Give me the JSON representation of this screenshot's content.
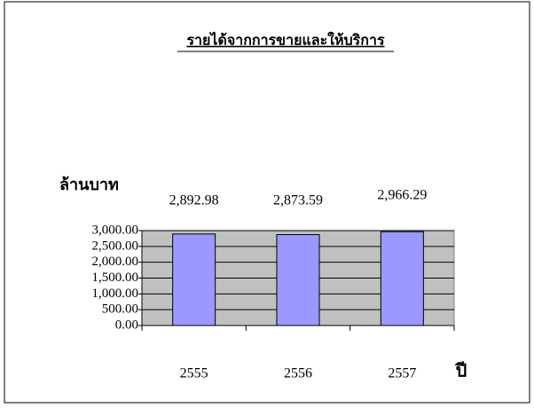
{
  "chart_data": {
    "type": "bar",
    "title": "รายได้จากการขายและให้บริการ",
    "y_label": "ล้านบาท",
    "x_label": "ปี",
    "categories": [
      "2555",
      "2556",
      "2557"
    ],
    "values": [
      2892.98,
      2873.59,
      2966.29
    ],
    "value_labels": [
      "2,892.98",
      "2,873.59",
      "2,966.29"
    ],
    "color": "#9999ff",
    "ylim": [
      0,
      3000
    ],
    "yticks": [
      {
        "value": 0,
        "label": "0.00"
      },
      {
        "value": 500,
        "label": "500.00"
      },
      {
        "value": 1000,
        "label": "1,000.00"
      },
      {
        "value": 1500,
        "label": "1,500.00"
      },
      {
        "value": 2000,
        "label": "2,000.00"
      },
      {
        "value": 2500,
        "label": "2,500.00"
      },
      {
        "value": 3000,
        "label": "3,000.00"
      }
    ],
    "grid": true
  }
}
